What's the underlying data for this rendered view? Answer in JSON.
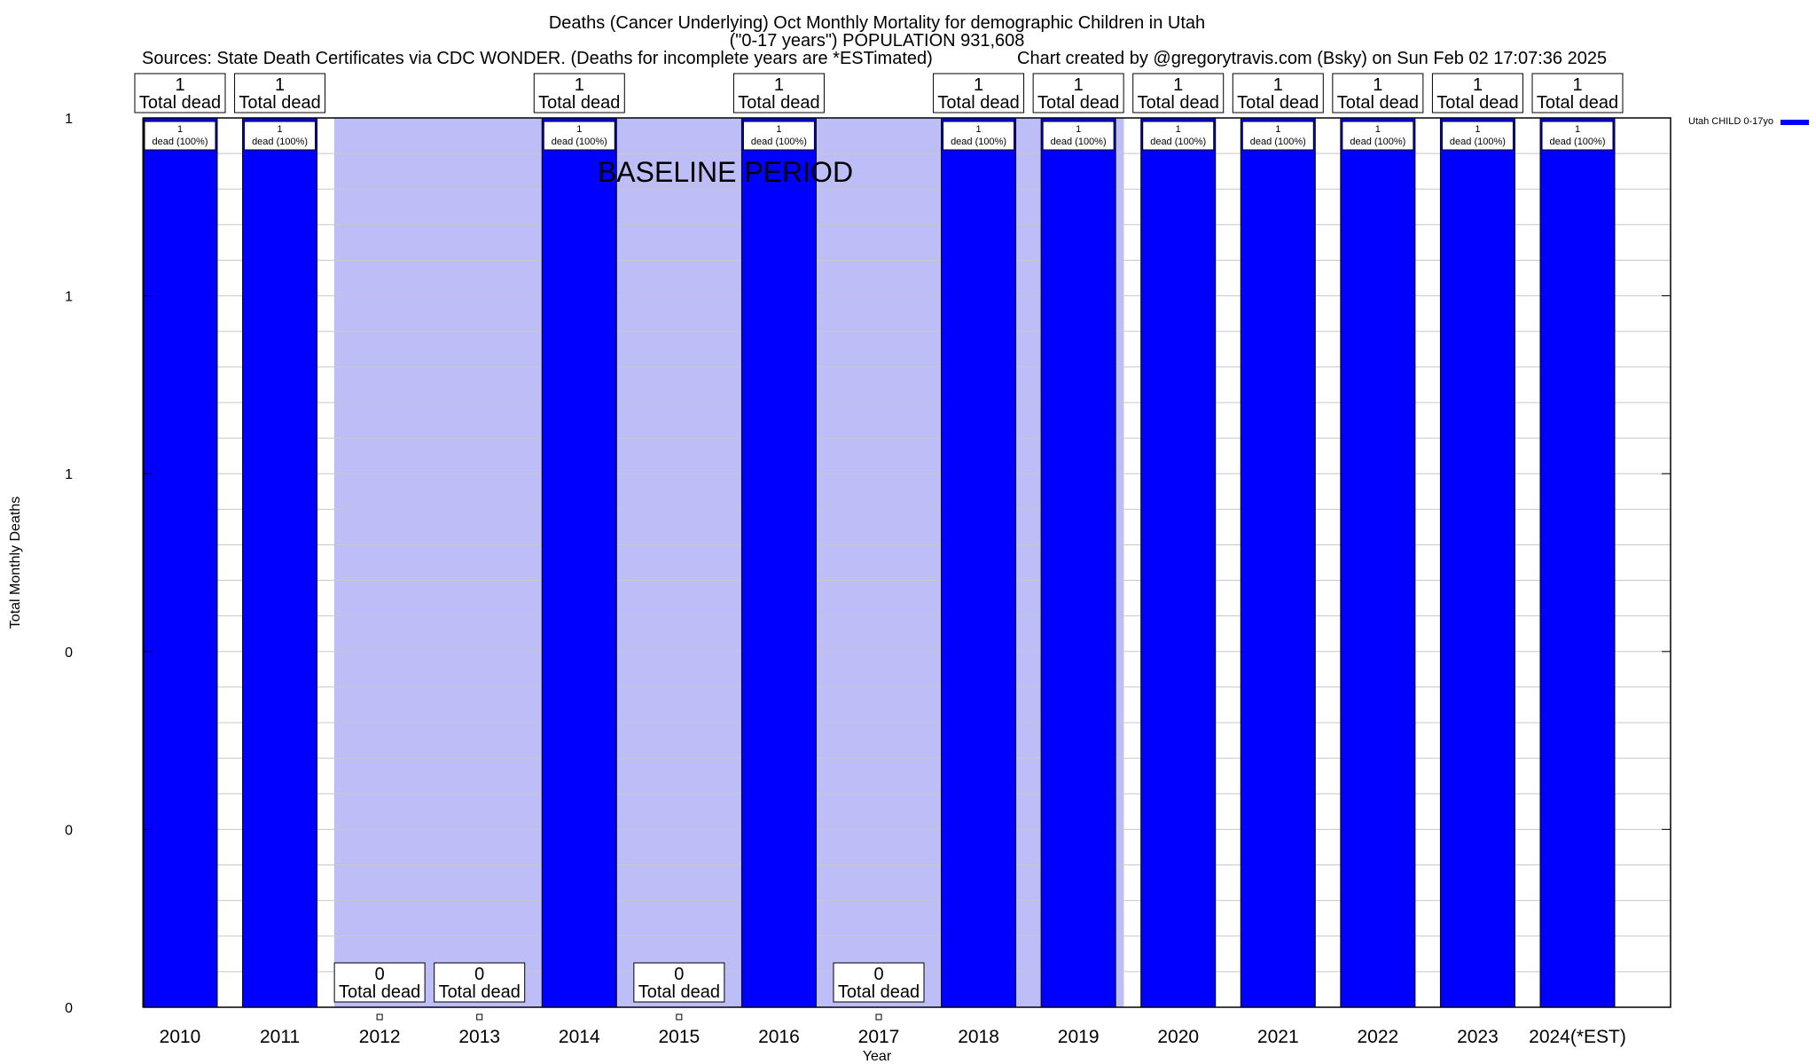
{
  "chart_data": {
    "type": "bar",
    "title_lines": [
      "Deaths (Cancer Underlying) Oct Monthly Mortality for demographic Children in Utah",
      "(\"0-17 years\") POPULATION 931,608"
    ],
    "sources_text": "Sources: State Death Certificates via CDC WONDER. (Deaths for incomplete years are *ESTimated)",
    "credit_text": "Chart created by @gregorytravis.com (Bsky) on Sun Feb 02 17:07:36 2025",
    "xlabel": "Year",
    "ylabel": "Total Monthly Deaths",
    "ylim": [
      0,
      1
    ],
    "y_tick_labels": [
      "0",
      "0",
      "0",
      "1",
      "1",
      "1"
    ],
    "categories": [
      "2010",
      "2011",
      "2012",
      "2013",
      "2014",
      "2015",
      "2016",
      "2017",
      "2018",
      "2019",
      "2020",
      "2021",
      "2022",
      "2023",
      "2024(*EST)"
    ],
    "series": [
      {
        "name": "Utah CHILD 0-17yo",
        "color": "#0000ff",
        "values": [
          1,
          1,
          0,
          0,
          1,
          0,
          1,
          0,
          1,
          1,
          1,
          1,
          1,
          1,
          1
        ]
      }
    ],
    "total_label_suffix": "Total dead",
    "bar_labels": [
      "1\ndead (100%)",
      "1\ndead (100%)",
      "",
      "",
      "1\ndead (100%)",
      "",
      "1\ndead (100%)",
      "",
      "1\ndead (100%)",
      "1\ndead (100%)",
      "1\ndead (100%)",
      "1\ndead (100%)",
      "1\ndead (100%)",
      "1\ndead (100%)",
      "1\ndead (100%)"
    ],
    "baseline_period": {
      "label": "BASELINE PERIOD",
      "start_category": "2012",
      "end_category": "2019",
      "color": "#bdbdf8"
    },
    "legend": {
      "position": "top-right",
      "entries": [
        "Utah CHILD 0-17yo"
      ]
    },
    "grid": true
  }
}
